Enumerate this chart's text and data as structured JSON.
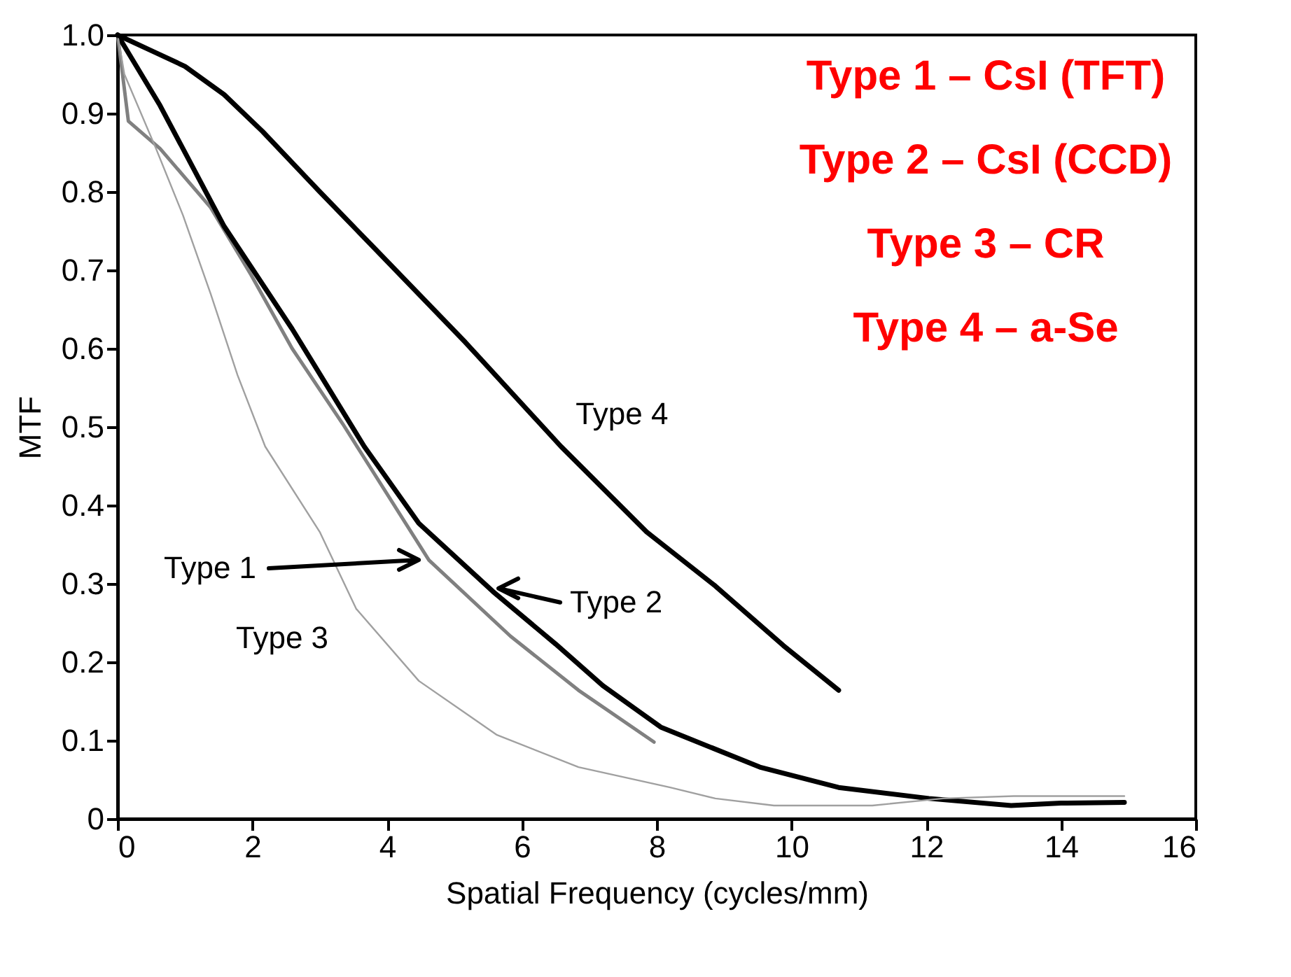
{
  "chart_data": {
    "type": "line",
    "xlabel": "Spatial Frequency (cycles/mm)",
    "ylabel": "MTF",
    "xlim": [
      0,
      16
    ],
    "xticks": [
      0,
      2,
      4,
      6,
      8,
      10,
      12,
      14,
      16
    ],
    "ylim": [
      0,
      1
    ],
    "yticks": [
      0,
      0.1,
      0.2,
      0.3,
      0.4,
      0.5,
      0.6,
      0.7,
      0.8,
      0.9,
      {
        "value": 1,
        "label": "1.0"
      }
    ],
    "grid": false,
    "marker": "none",
    "line_style": "solid",
    "series": [
      {
        "color": "#808080",
        "x": [
          0,
          0.16,
          0.63,
          1.38,
          1.98,
          2.59,
          3.34,
          4.62,
          5.83,
          6.84,
          7.96
        ],
        "values": [
          1.0,
          0.89,
          0.855,
          0.78,
          0.694,
          0.6,
          0.504,
          0.33,
          0.233,
          0.164,
          0.098
        ]
      },
      {
        "color": "#000000",
        "x": [
          0,
          0.63,
          1.58,
          2.59,
          3.66,
          4.47,
          5.57,
          6.5,
          7.2,
          8.06,
          9.53,
          10.7,
          12.04,
          13.26,
          14.0,
          14.94
        ],
        "values": [
          1.0,
          0.91,
          0.756,
          0.625,
          0.475,
          0.377,
          0.29,
          0.223,
          0.17,
          0.117,
          0.066,
          0.04,
          0.026,
          0.017,
          0.02,
          0.021
        ]
      },
      {
        "color": "#a0a0a0",
        "x": [
          0,
          0.1,
          0.57,
          0.97,
          1.38,
          1.78,
          2.19,
          3.0,
          3.54,
          4.47,
          5.63,
          6.84,
          8.2,
          8.87,
          9.74,
          11.2,
          12.25,
          13.3,
          14.94
        ],
        "values": [
          1.0,
          0.95,
          0.855,
          0.77,
          0.67,
          0.566,
          0.475,
          0.366,
          0.268,
          0.176,
          0.107,
          0.066,
          0.04,
          0.026,
          0.017,
          0.017,
          0.026,
          0.029,
          0.029
        ]
      },
      {
        "color": "#000000",
        "x": [
          0,
          0.5,
          1.0,
          1.58,
          2.15,
          3.0,
          3.8,
          5.16,
          6.58,
          7.85,
          8.87,
          9.88,
          10.7
        ],
        "values": [
          1.0,
          0.98,
          0.96,
          0.924,
          0.877,
          0.8,
          0.729,
          0.608,
          0.475,
          0.366,
          0.297,
          0.221,
          0.164
        ]
      }
    ],
    "annotations": [
      "Type 1",
      {
        "text": "Type 2",
        "x": 5.57,
        "y": 0.294
      },
      {
        "text": "Type 3",
        "x": 4.0,
        "y": 0.22
      },
      {
        "text": "Type 4",
        "x": 6.3,
        "y": 0.5
      },
      "Type 1 – CsI (TFT)",
      "Type 2 – CsI (CCD)",
      "Type 3 – CR",
      "Type 4 – a-Se"
    ]
  }
}
